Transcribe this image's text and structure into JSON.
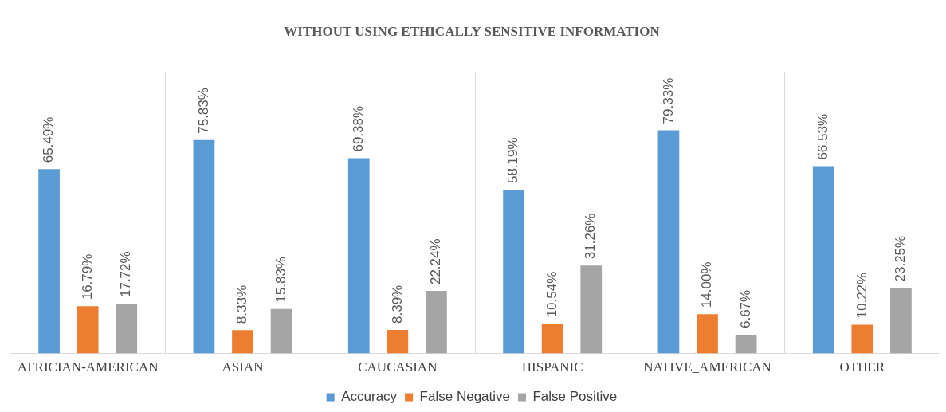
{
  "chart_data": {
    "type": "bar",
    "title": "WITHOUT USING ETHICALLY SENSITIVE INFORMATION",
    "categories": [
      "AFRICIAN-AMERICAN",
      "ASIAN",
      "CAUCASIAN",
      "HISPANIC",
      "NATIVE_AMERICAN",
      "OTHER"
    ],
    "series": [
      {
        "name": "Accuracy",
        "color": "#5b9bd5",
        "values": [
          65.49,
          75.83,
          69.38,
          58.19,
          79.33,
          66.53
        ],
        "value_labels": [
          "65.49%",
          "75.83%",
          "69.38%",
          "58.19%",
          "79.33%",
          "66.53%"
        ]
      },
      {
        "name": "False Negative",
        "color": "#ed7d31",
        "values": [
          16.79,
          8.33,
          8.39,
          10.54,
          14.0,
          10.22
        ],
        "value_labels": [
          "16.79%",
          "8.33%",
          "8.39%",
          "10.54%",
          "14.00%",
          "10.22%"
        ]
      },
      {
        "name": "False Positive",
        "color": "#a5a5a5",
        "values": [
          17.72,
          15.83,
          22.24,
          31.26,
          6.67,
          23.25
        ],
        "value_labels": [
          "17.72%",
          "15.83%",
          "22.24%",
          "31.26%",
          "6.67%",
          "23.25%"
        ]
      }
    ],
    "relative": false,
    "grid": "x",
    "legend": "bottom"
  }
}
